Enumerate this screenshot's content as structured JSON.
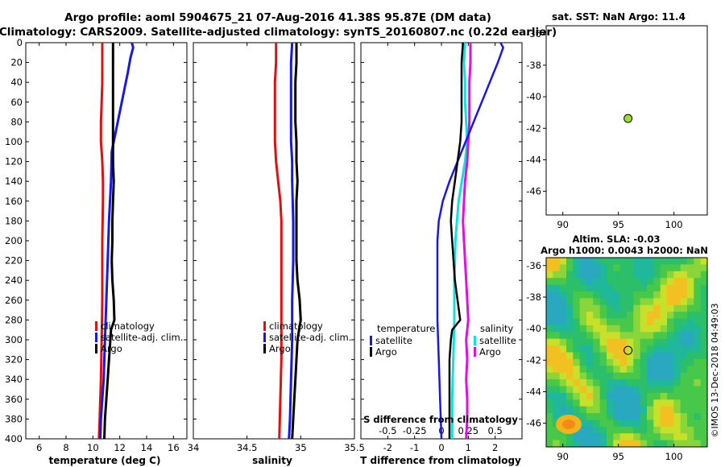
{
  "title": {
    "line1": "Argo profile: aoml 5904675_21 07-Aug-2016 41.38S 95.87E (DM data)",
    "line2": "Climatology: CARS2009. Satellite-adjusted climatology: synTS_20160807.nc (0.22d earlier)"
  },
  "colors": {
    "climatology": "#e01010",
    "satellite": "#1818e0",
    "argo": "#000000",
    "sal_satellite": "#10e0e0",
    "sal_argo": "#e010e0",
    "marker": "#9adf2a"
  },
  "depth_axis": {
    "ticks": [
      0,
      20,
      40,
      60,
      80,
      100,
      120,
      140,
      160,
      180,
      200,
      220,
      240,
      260,
      280,
      300,
      320,
      340,
      360,
      380,
      400
    ],
    "labels": [
      "0",
      "20",
      "40",
      "60",
      "80",
      "100",
      "120",
      "140",
      "160",
      "180",
      "200",
      "220",
      "240",
      "260",
      "280",
      "300",
      "320",
      "340",
      "360",
      "380",
      "400"
    ]
  },
  "chart_data": [
    {
      "type": "line",
      "name": "temperature",
      "xlabel": "temperature (deg C)",
      "xlim": [
        5,
        17
      ],
      "xticks": [
        6,
        8,
        10,
        12,
        14,
        16
      ],
      "xtick_labels": [
        "6",
        "8",
        "10",
        "12",
        "14",
        "16"
      ],
      "ylim": [
        400,
        0
      ],
      "legend": [
        "climatology",
        "satellite-adj. clim.",
        "Argo"
      ],
      "series": [
        {
          "name": "climatology",
          "depth": [
            0,
            20,
            40,
            60,
            80,
            100,
            120,
            140,
            160,
            200,
            260,
            300,
            340,
            380,
            400
          ],
          "values": [
            10.7,
            10.7,
            10.7,
            10.65,
            10.6,
            10.6,
            10.7,
            10.75,
            10.75,
            10.7,
            10.7,
            10.65,
            10.6,
            10.5,
            10.45
          ]
        },
        {
          "name": "satellite-adj. clim.",
          "depth": [
            0,
            5,
            15,
            30,
            50,
            70,
            90,
            110,
            140,
            180,
            220,
            260,
            300,
            340,
            380,
            400
          ],
          "values": [
            12.9,
            13.0,
            12.8,
            12.6,
            12.3,
            12.0,
            11.7,
            11.4,
            11.35,
            11.2,
            11.1,
            11.0,
            10.9,
            10.8,
            10.6,
            10.55
          ]
        },
        {
          "name": "Argo",
          "depth": [
            0,
            20,
            40,
            60,
            80,
            100,
            120,
            140,
            160,
            180,
            200,
            220,
            240,
            260,
            280,
            290,
            300,
            320,
            340,
            360,
            380,
            400
          ],
          "values": [
            11.5,
            11.5,
            11.5,
            11.5,
            11.5,
            11.5,
            11.5,
            11.55,
            11.5,
            11.45,
            11.45,
            11.4,
            11.45,
            11.55,
            11.6,
            11.35,
            11.3,
            11.2,
            11.1,
            11.0,
            10.9,
            10.85
          ]
        }
      ]
    },
    {
      "type": "line",
      "name": "salinity",
      "xlabel": "salinity",
      "xlim": [
        34,
        35.5
      ],
      "xticks": [
        34,
        34.5,
        35,
        35.5
      ],
      "xtick_labels": [
        "34",
        "34.5",
        "35",
        "35.5"
      ],
      "ylim": [
        400,
        0
      ],
      "legend": [
        "climatology",
        "satellite-adj. clim.",
        "Argo"
      ],
      "series": [
        {
          "name": "climatology",
          "depth": [
            0,
            20,
            40,
            60,
            80,
            100,
            120,
            140,
            160,
            180,
            200,
            240,
            280,
            320,
            360,
            400
          ],
          "values": [
            34.77,
            34.77,
            34.76,
            34.76,
            34.76,
            34.76,
            34.77,
            34.79,
            34.81,
            34.82,
            34.82,
            34.82,
            34.82,
            34.82,
            34.81,
            34.8
          ]
        },
        {
          "name": "satellite-adj. clim.",
          "depth": [
            0,
            20,
            40,
            60,
            80,
            100,
            120,
            140,
            180,
            220,
            260,
            300,
            340,
            380,
            400
          ],
          "values": [
            34.92,
            34.91,
            34.91,
            34.91,
            34.91,
            34.91,
            34.92,
            34.92,
            34.93,
            34.93,
            34.92,
            34.92,
            34.91,
            34.9,
            34.89
          ]
        },
        {
          "name": "Argo",
          "depth": [
            0,
            20,
            40,
            60,
            80,
            100,
            120,
            140,
            160,
            180,
            200,
            220,
            240,
            260,
            280,
            300,
            320,
            340,
            360,
            380,
            400
          ],
          "values": [
            34.96,
            34.96,
            34.95,
            34.95,
            34.95,
            34.96,
            34.96,
            34.97,
            34.96,
            34.96,
            34.96,
            34.96,
            34.97,
            34.99,
            35.0,
            34.97,
            34.96,
            34.95,
            34.94,
            34.93,
            34.92
          ]
        }
      ]
    },
    {
      "type": "line",
      "name": "difference",
      "xlabel": "T difference from climatology",
      "xlim": [
        -3,
        3
      ],
      "xticks": [
        -2,
        -1,
        0,
        1,
        2
      ],
      "xtick_labels": [
        "-2",
        "-1",
        "0",
        "1",
        "2"
      ],
      "s_xlabel": "S difference from climatology",
      "s_xticks": [
        -0.5,
        -0.25,
        0,
        0.25,
        0.5
      ],
      "s_xtick_labels": [
        "-0.5",
        "-0.25",
        "0",
        "0.25",
        "0.5"
      ],
      "ylim": [
        400,
        0
      ],
      "legend": {
        "temperature_title": "temperature",
        "salinity_title": "salinity",
        "entries": [
          "satellite",
          "Argo",
          "satellite",
          "Argo"
        ]
      },
      "series": [
        {
          "name": "temperature satellite",
          "depth": [
            0,
            5,
            20,
            40,
            60,
            80,
            100,
            120,
            140,
            160,
            180,
            200,
            240,
            280,
            320,
            360,
            400
          ],
          "values": [
            2.2,
            2.3,
            2.1,
            1.8,
            1.5,
            1.2,
            0.9,
            0.6,
            0.3,
            0.05,
            -0.1,
            -0.15,
            -0.15,
            -0.15,
            -0.1,
            -0.05,
            0.0
          ]
        },
        {
          "name": "temperature Argo",
          "depth": [
            0,
            20,
            40,
            60,
            80,
            100,
            120,
            140,
            160,
            180,
            200,
            220,
            240,
            260,
            280,
            290,
            300,
            320,
            340,
            360,
            380,
            400
          ],
          "values": [
            0.8,
            0.75,
            0.75,
            0.75,
            0.75,
            0.7,
            0.6,
            0.5,
            0.4,
            0.35,
            0.4,
            0.45,
            0.5,
            0.6,
            0.7,
            0.4,
            0.35,
            0.3,
            0.3,
            0.3,
            0.3,
            0.3
          ]
        },
        {
          "name": "salinity satellite",
          "depth": [
            0,
            20,
            40,
            60,
            80,
            100,
            120,
            140,
            160,
            200,
            240,
            280,
            320,
            360,
            400
          ],
          "values": [
            0.22,
            0.21,
            0.22,
            0.22,
            0.23,
            0.24,
            0.22,
            0.19,
            0.16,
            0.13,
            0.12,
            0.12,
            0.11,
            0.1,
            0.1
          ]
        },
        {
          "name": "salinity Argo",
          "depth": [
            0,
            20,
            40,
            60,
            80,
            100,
            120,
            140,
            160,
            180,
            200,
            220,
            240,
            260,
            280,
            300,
            320,
            340,
            360,
            380,
            400
          ],
          "values": [
            0.27,
            0.27,
            0.26,
            0.26,
            0.26,
            0.25,
            0.24,
            0.22,
            0.21,
            0.2,
            0.21,
            0.22,
            0.23,
            0.24,
            0.25,
            0.23,
            0.24,
            0.23,
            0.24,
            0.24,
            0.23
          ]
        }
      ]
    },
    {
      "type": "scatter",
      "name": "sst-map",
      "title": "sat. SST: NaN Argo: 11.4",
      "xlim": [
        88.5,
        103
      ],
      "ylim": [
        -47.5,
        -35.5
      ],
      "xticks": [
        90,
        95,
        100
      ],
      "xtick_labels": [
        "90",
        "95",
        "100"
      ],
      "yticks": [
        -36,
        -38,
        -40,
        -42,
        -44,
        -46
      ],
      "ytick_labels": [
        "-36",
        "-38",
        "-40",
        "-42",
        "-44",
        "-46"
      ],
      "point": {
        "lon": 95.87,
        "lat": -41.38
      }
    },
    {
      "type": "heatmap",
      "name": "sla-map",
      "title1": "Altim. SLA: -0.03",
      "title2": "Argo h1000: 0.0043 h2000: NaN",
      "xlim": [
        88.5,
        103
      ],
      "ylim": [
        -47.5,
        -35.5
      ],
      "xticks": [
        90,
        95,
        100
      ],
      "xtick_labels": [
        "90",
        "95",
        "100"
      ],
      "yticks": [
        -36,
        -38,
        -40,
        -42,
        -44,
        -46
      ],
      "ytick_labels": [
        "-36",
        "-38",
        "-40",
        "-42",
        "-44",
        "-46"
      ],
      "point": {
        "lon": 95.87,
        "lat": -41.38
      }
    }
  ],
  "credit": "©IMOS 13-Dec-2018 04:49:03"
}
